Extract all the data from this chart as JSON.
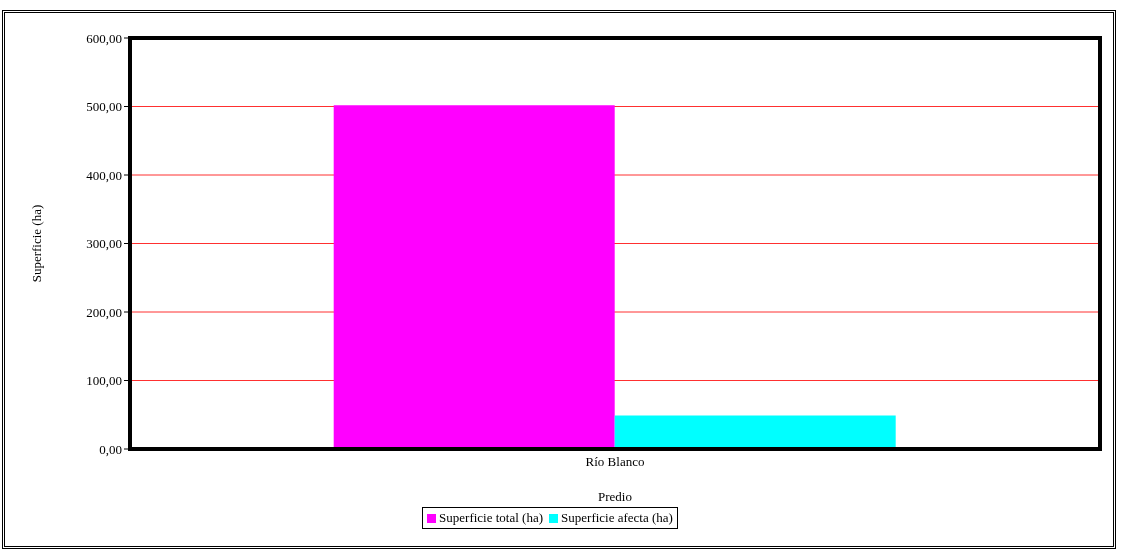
{
  "chart_data": {
    "type": "bar",
    "xlabel": "Predio",
    "ylabel": "Superficie (ha)",
    "categories": [
      "Río Blanco"
    ],
    "series": [
      {
        "name": "Superficie total (ha)",
        "color": "#ff00ff",
        "values": [
          502
        ]
      },
      {
        "name": "Superficie afecta (ha)",
        "color": "#00ffff",
        "values": [
          49
        ]
      }
    ],
    "ylim": [
      0,
      600
    ],
    "yticks": [
      {
        "value": 0,
        "label": "0,00"
      },
      {
        "value": 100,
        "label": "100,00"
      },
      {
        "value": 200,
        "label": "200,00"
      },
      {
        "value": 300,
        "label": "300,00"
      },
      {
        "value": 400,
        "label": "400,00"
      },
      {
        "value": 500,
        "label": "500,00"
      },
      {
        "value": 600,
        "label": "600,00"
      }
    ],
    "grid": "y",
    "legend": "bottom"
  }
}
